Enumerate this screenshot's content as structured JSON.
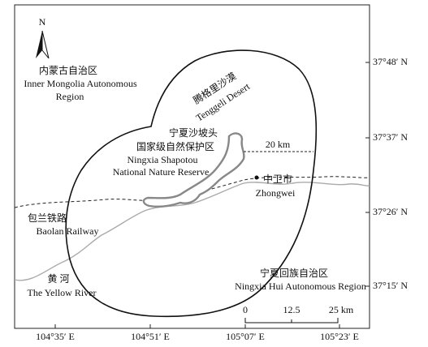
{
  "north": "N",
  "labels": {
    "inner_mongolia_cn": "内蒙古自治区",
    "inner_mongolia_en_1": "Inner Mongolia Autonomous",
    "inner_mongolia_en_2": "Region",
    "desert_cn": "腾格里沙漠",
    "desert_en": "Tenggeli Desert",
    "reserve_cn_1": "宁夏沙坡头",
    "reserve_cn_2": "国家级自然保护区",
    "reserve_en_1": "Ningxia Shapotou",
    "reserve_en_2": "National Nature Reserve",
    "buffer_distance": "20 km",
    "city_cn": "中卫市",
    "city_en": "Zhongwei",
    "railway_cn": "包兰铁路",
    "railway_en": "Baolan Railway",
    "river_cn": "黄  河",
    "river_en": "The Yellow River",
    "ningxia_cn": "宁夏回族自治区",
    "ningxia_en": "Ningxia Hui Autonomous Region"
  },
  "scale_bar": [
    "0",
    "12.5",
    "25 km"
  ],
  "latitude_labels": [
    "37°48′ N",
    "37°37′ N",
    "37°26′ N",
    "37°15′ N"
  ],
  "longitude_labels": [
    "104°35′ E",
    "104°51′ E",
    "105°07′ E",
    "105°23′ E"
  ]
}
